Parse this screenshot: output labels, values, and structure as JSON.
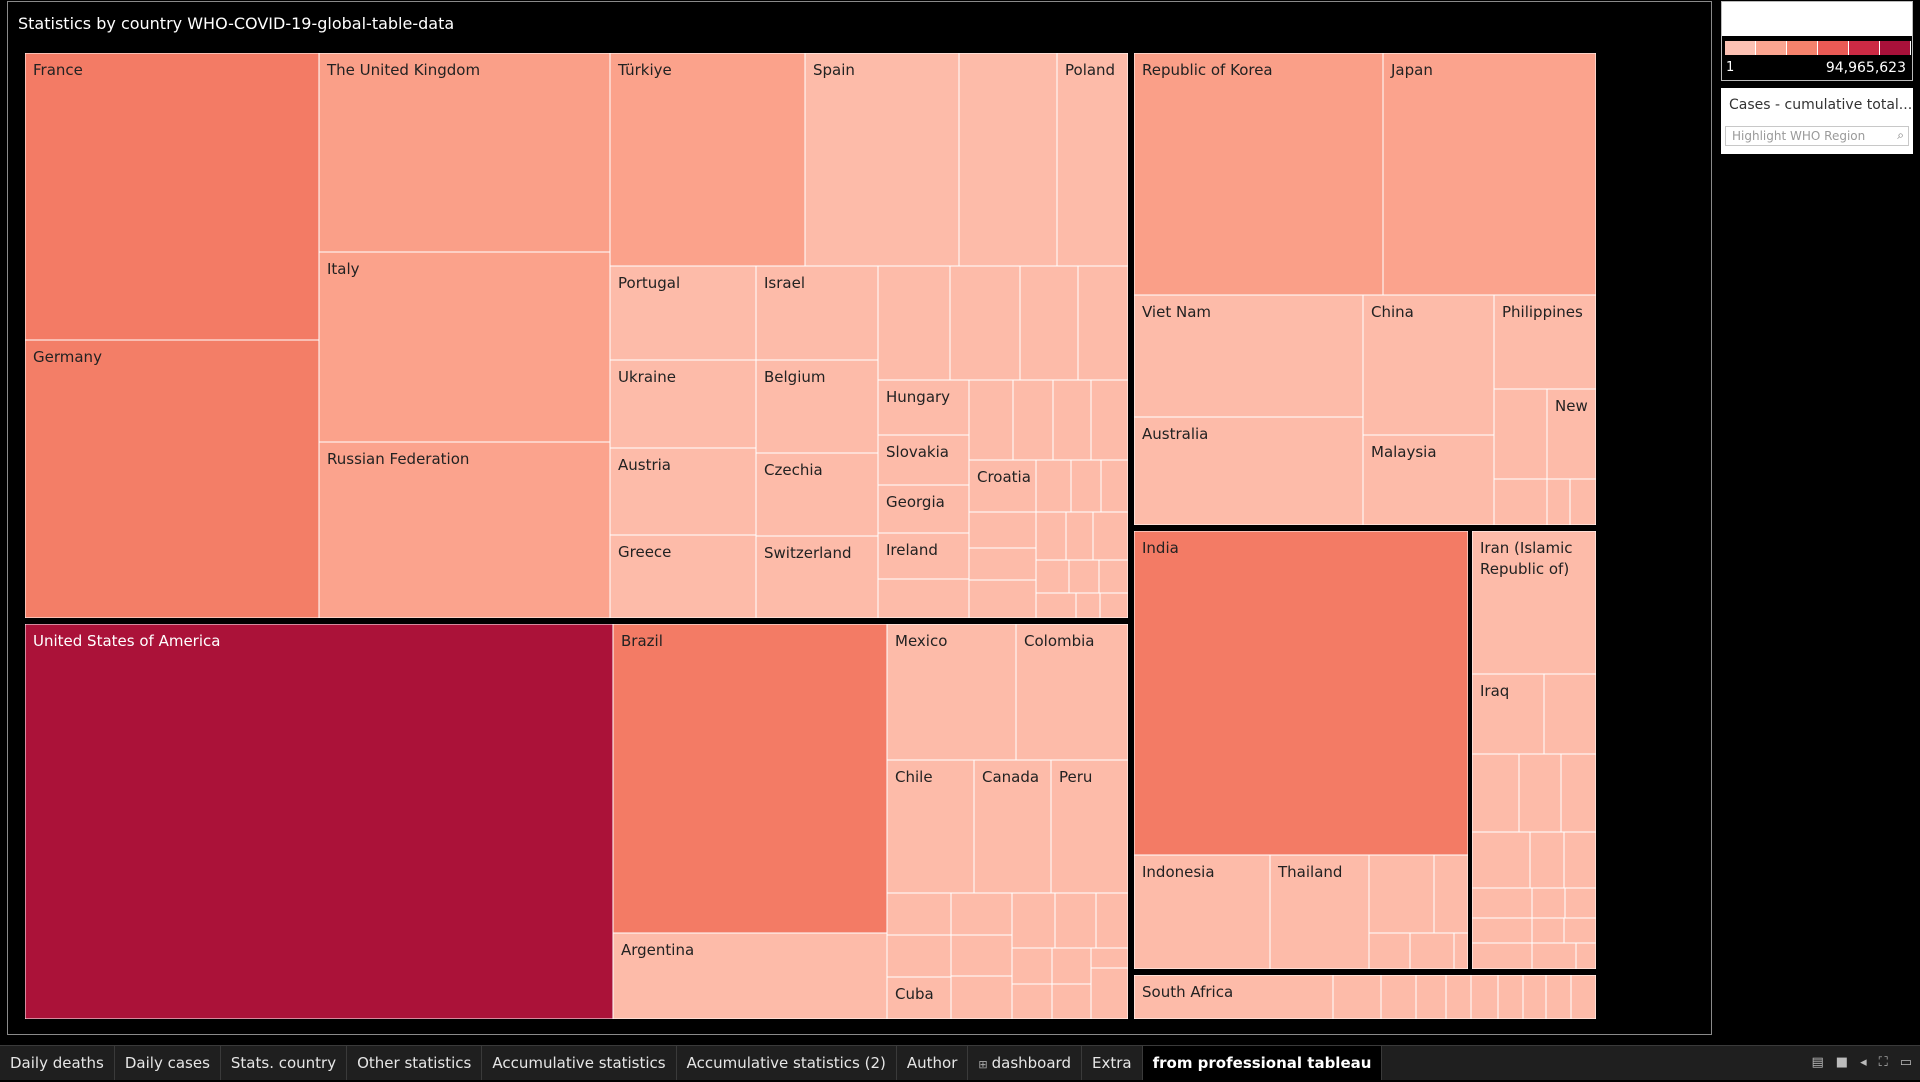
{
  "viz": {
    "title": "Statistics by country WHO-COVID-19-global-table-data"
  },
  "legend": {
    "min_label": "1",
    "max_label": "94,965,623",
    "ramp_colors": [
      "#fcc1b3",
      "#fba590",
      "#f5826c",
      "#ea5a55",
      "#cc2a44",
      "#a8113a"
    ]
  },
  "filter": {
    "title": "Cases - cumulative total...",
    "highlight_placeholder": "Highlight WHO Region",
    "search_icon": "search-icon"
  },
  "tabs": [
    {
      "label": "Daily deaths"
    },
    {
      "label": "Daily cases"
    },
    {
      "label": "Stats. country"
    },
    {
      "label": "Other statistics"
    },
    {
      "label": "Accumulative statistics"
    },
    {
      "label": "Accumulative statistics (2)"
    },
    {
      "label": "Author"
    },
    {
      "label": "dashboard",
      "icon": "dashboard-icon"
    },
    {
      "label": "Extra"
    },
    {
      "label": "from professional tableau",
      "active": true
    }
  ],
  "chart_data": {
    "type": "treemap",
    "title": "Statistics by country WHO-COVID-19-global-table-data",
    "measure": "Cases - cumulative total",
    "color_range": [
      1,
      94965623
    ],
    "groups": [
      {
        "countries": [
          {
            "name": "France",
            "label": "France",
            "color": "#f37b65"
          },
          {
            "name": "Germany",
            "label": "Germany",
            "color": "#f37e67"
          },
          {
            "name": "The United Kingdom",
            "label": "The United Kingdom",
            "color": "#fa9f88"
          },
          {
            "name": "Italy",
            "label": "Italy",
            "color": "#fba28b"
          },
          {
            "name": "Russian Federation",
            "label": "Russian Federation",
            "color": "#fba38d"
          },
          {
            "name": "Türkiye",
            "label": "Türkiye",
            "color": "#fba28b"
          },
          {
            "name": "Spain",
            "label": "Spain",
            "color": "#fdbba9"
          },
          {
            "name": "Poland",
            "label": "Poland",
            "color": "#fdbba9"
          },
          {
            "name": "Portugal",
            "label": "Portugal",
            "color": "#fdbba9"
          },
          {
            "name": "Israel",
            "label": "Israel",
            "color": "#fdbba9"
          },
          {
            "name": "Ukraine",
            "label": "Ukraine",
            "color": "#fdbba9"
          },
          {
            "name": "Belgium",
            "label": "Belgium",
            "color": "#fdbba9"
          },
          {
            "name": "Austria",
            "label": "Austria",
            "color": "#fdbba9"
          },
          {
            "name": "Czechia",
            "label": "Czechia",
            "color": "#fdbba9"
          },
          {
            "name": "Greece",
            "label": "Greece",
            "color": "#fdbba9"
          },
          {
            "name": "Switzerland",
            "label": "Switzerland",
            "color": "#fdbba9"
          },
          {
            "name": "Hungary",
            "label": "Hungary",
            "color": "#fdbba9"
          },
          {
            "name": "Slovakia",
            "label": "Slovakia",
            "color": "#fdbba9"
          },
          {
            "name": "Georgia",
            "label": "Georgia",
            "color": "#fdbba9"
          },
          {
            "name": "Ireland",
            "label": "Ireland",
            "color": "#fdbba9"
          },
          {
            "name": "Croatia",
            "label": "Croatia",
            "color": "#fdbba9"
          }
        ]
      },
      {
        "countries": [
          {
            "name": "United States of America",
            "label": "United States of America",
            "color": "#ab1239"
          },
          {
            "name": "Brazil",
            "label": "Brazil",
            "color": "#f37b65"
          },
          {
            "name": "Argentina",
            "label": "Argentina",
            "color": "#fdbba9"
          },
          {
            "name": "Mexico",
            "label": "Mexico",
            "color": "#fdbba9"
          },
          {
            "name": "Colombia",
            "label": "Colombia",
            "color": "#fdbba9"
          },
          {
            "name": "Chile",
            "label": "Chile",
            "color": "#fdbba9"
          },
          {
            "name": "Canada",
            "label": "Canada",
            "color": "#fdbba9"
          },
          {
            "name": "Peru",
            "label": "Peru",
            "color": "#fdbba9"
          },
          {
            "name": "Cuba",
            "label": "Cuba",
            "color": "#fdbba9"
          }
        ]
      },
      {
        "countries": [
          {
            "name": "Republic of Korea",
            "label": "Republic of Korea",
            "color": "#fa9f88"
          },
          {
            "name": "Japan",
            "label": "Japan",
            "color": "#fba38d"
          },
          {
            "name": "Viet Nam",
            "label": "Viet Nam",
            "color": "#fdbba9"
          },
          {
            "name": "China",
            "label": "China",
            "color": "#fdbba9"
          },
          {
            "name": "Philippines",
            "label": "Philippines",
            "color": "#fdbba9"
          },
          {
            "name": "Australia",
            "label": "Australia",
            "color": "#fdbba9"
          },
          {
            "name": "Malaysia",
            "label": "Malaysia",
            "color": "#fdbba9"
          },
          {
            "name": "New",
            "label": "New",
            "color": "#fdbba9"
          }
        ]
      },
      {
        "countries": [
          {
            "name": "India",
            "label": "India",
            "color": "#f37b65"
          },
          {
            "name": "Indonesia",
            "label": "Indonesia",
            "color": "#fdbba9"
          },
          {
            "name": "Thailand",
            "label": "Thailand",
            "color": "#fdbba9"
          },
          {
            "name": "Iran (Islamic Republic of)",
            "label": "Iran (Islamic\nRepublic of)",
            "color": "#fdbba9"
          },
          {
            "name": "Iraq",
            "label": "Iraq",
            "color": "#fdbba9"
          }
        ]
      },
      {
        "countries": [
          {
            "name": "South Africa",
            "label": "South Africa",
            "color": "#fdbba9"
          }
        ]
      }
    ]
  }
}
